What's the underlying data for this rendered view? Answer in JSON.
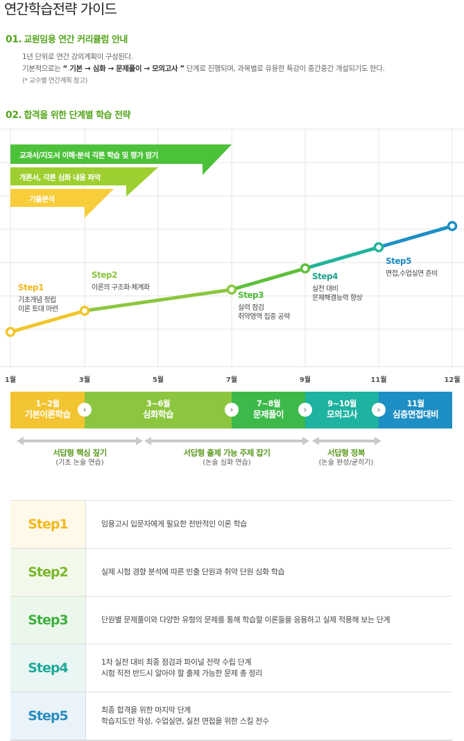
{
  "page_title": "연간학습전략 가이드",
  "section1": {
    "num": "01.",
    "title": "교원임용 연간 커리큘럼 안내",
    "line1": "1년 단위로 연간 강의계획이 구성된다.",
    "line2_pre": "기본적으로는 ",
    "line2_bold": "“ 기본 → 심화 → 문제풀이 → 모의고사 ”",
    "line2_post": " 단계로 진행되며, 과목별로 유용한 특강이 중간중간 개설되기도 한다.",
    "note": "(* 교수별 연간계획 참고)"
  },
  "section2": {
    "num": "02.",
    "title": "합격을 위한 단계별 학습 전략"
  },
  "banners": [
    {
      "label": "교과서/지도서 이해·분석 각론 학습 및 평가 암기",
      "color": "#4cc23a"
    },
    {
      "label": "개론서, 각론 심화 내용 파악",
      "color": "#9ccf2f"
    },
    {
      "label": "기출분석",
      "color": "#f8cd3c"
    }
  ],
  "chart_data": {
    "type": "line",
    "x_labels": [
      "1월",
      "3월",
      "5월",
      "7월",
      "9월",
      "11월",
      "12월"
    ],
    "points": [
      {
        "month": "1월",
        "step": 1
      },
      {
        "month": "3월",
        "step": 2
      },
      {
        "month": "7월",
        "step": 3
      },
      {
        "month": "9월",
        "step": 4
      },
      {
        "month": "11월",
        "step": 5
      },
      {
        "month": "12월",
        "step": 6
      }
    ],
    "annotations": [
      {
        "title": "Step1",
        "lines": [
          "기초개념 정립",
          "이론 토대 마련"
        ],
        "color": "#f2b81d"
      },
      {
        "title": "Step2",
        "lines": [
          "이론의 구조화·체계화"
        ],
        "color": "#8cc63f"
      },
      {
        "title": "Step3",
        "lines": [
          "실력 점검",
          "취약영역 집중 공략"
        ],
        "color": "#4cbb3a"
      },
      {
        "title": "Step4",
        "lines": [
          "실전 대비",
          "문제해결능력 향상"
        ],
        "color": "#21a48c"
      },
      {
        "title": "Step5",
        "lines": [
          "면접,수업실연 준비"
        ],
        "color": "#1f8dbf"
      }
    ],
    "grid": true
  },
  "phases": [
    {
      "period": "1~2월",
      "name": "기본이론학습",
      "color": "#f3c431"
    },
    {
      "period": "3~6월",
      "name": "심화학습",
      "color": "#8cc63f"
    },
    {
      "period": "7~8월",
      "name": "문제풀이",
      "color": "#3db94a"
    },
    {
      "period": "9~10월",
      "name": "모의고사",
      "color": "#1eb2a0"
    },
    {
      "period": "11월",
      "name": "심층면접대비",
      "color": "#1d8fc4"
    }
  ],
  "strategies": [
    {
      "title": "서답형 핵심 짚기",
      "sub": "(기초 논술 연습)"
    },
    {
      "title": "서답형 출제 가능 주제 잡기",
      "sub": "(논술 심화 연습)"
    },
    {
      "title": "서답형 정복",
      "sub": "(논술 완성/굳히기)"
    }
  ],
  "steps": [
    {
      "label": "Step1",
      "desc1": "임용고시 입문자에게 필요한 전반적인 이론 학습",
      "desc2": "",
      "label_color": "#f2b81d",
      "bg": "#fff9ea"
    },
    {
      "label": "Step2",
      "desc1": "실제 시험 경향 분석에 따른 빈출 단원과 취약 단원 심화 학습",
      "desc2": "",
      "label_color": "#79b82a",
      "bg": "#f3f9ea"
    },
    {
      "label": "Step3",
      "desc1": "단원별 문제풀이와 다양한 유형의 문제를 통해 학습할 이론들을 응용하고 실제 적용해 보는 단계",
      "desc2": "",
      "label_color": "#3fae3f",
      "bg": "#ecf7ec"
    },
    {
      "label": "Step4",
      "desc1": "1차 실전 대비 최종 점검과 파이널 전략 수립 단계",
      "desc2": "시험 직전 반드시 알아야 할 출제 가능한 문제 총 정리",
      "label_color": "#1fa99a",
      "bg": "#e9f6f4"
    },
    {
      "label": "Step5",
      "desc1": "최종 합격을 위한 마지막 단계",
      "desc2": "학습지도안 작성, 수업실연, 실전 면접을 위한 스킬 전수",
      "label_color": "#2a8cc1",
      "bg": "#eaf3f9"
    }
  ]
}
